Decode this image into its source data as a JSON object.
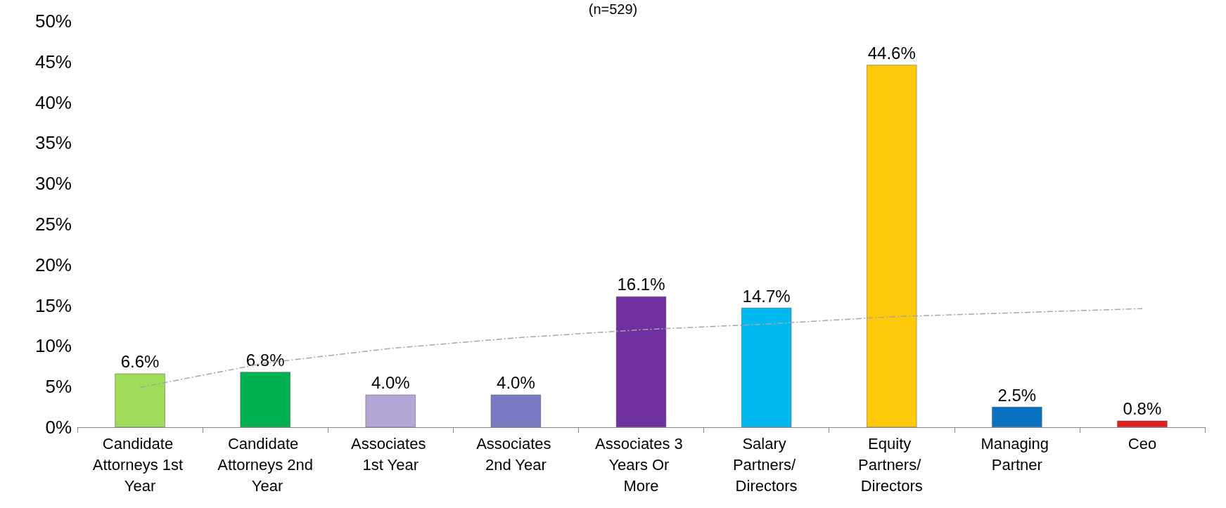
{
  "chart_data": {
    "type": "bar",
    "title": "(n=529)",
    "categories": [
      "Candidate Attorneys 1st Year",
      "Candidate Attorneys 2nd Year",
      "Associates 1st Year",
      "Associates 2nd Year",
      "Associates 3 Years Or More",
      "Salary Partners/ Directors",
      "Equity Partners/ Directors",
      "Managing Partner",
      "Ceo"
    ],
    "series": [
      {
        "colors": [
          "#9fdc5a",
          "#00b050",
          "#b4a7d6",
          "#7b78c4",
          "#7030a0",
          "#00b8f0",
          "#ffc808",
          "#0a70c0",
          "#e02020"
        ],
        "values": [
          6.6,
          6.8,
          4.0,
          4.0,
          16.1,
          14.7,
          44.6,
          2.5,
          0.8
        ],
        "value_labels": [
          "6.6%",
          "6.8%",
          "4.0%",
          "4.0%",
          "16.1%",
          "14.7%",
          "44.6%",
          "2.5%",
          "0.8%"
        ]
      },
      {
        "type": "line",
        "color": "#a6a6a6",
        "line_style": "dashed",
        "marker": "none",
        "x": [
          "Candidate Attorneys 1st Year",
          "Candidate Attorneys 2nd Year",
          "Associates 1st Year",
          "Associates 2nd Year",
          "Associates 3 Years Or More",
          "Salary Partners/ Directors",
          "Equity Partners/ Directors",
          "Managing Partner",
          "Ceo"
        ],
        "values": [
          4.9,
          7.9,
          9.7,
          11.0,
          12.0,
          12.7,
          13.6,
          14.1,
          14.6
        ]
      }
    ],
    "ylim": [
      0,
      50
    ],
    "yticks": [
      {
        "value": 0,
        "label": "0%"
      },
      {
        "value": 5,
        "label": "5%"
      },
      {
        "value": 10,
        "label": "10%"
      },
      {
        "value": 15,
        "label": "15%"
      },
      {
        "value": 20,
        "label": "20%"
      },
      {
        "value": 25,
        "label": "25%"
      },
      {
        "value": 30,
        "label": "30%"
      },
      {
        "value": 35,
        "label": "35%"
      },
      {
        "value": 40,
        "label": "40%"
      },
      {
        "value": 45,
        "label": "45%"
      },
      {
        "value": 50,
        "label": "50%"
      }
    ],
    "grid": false
  }
}
